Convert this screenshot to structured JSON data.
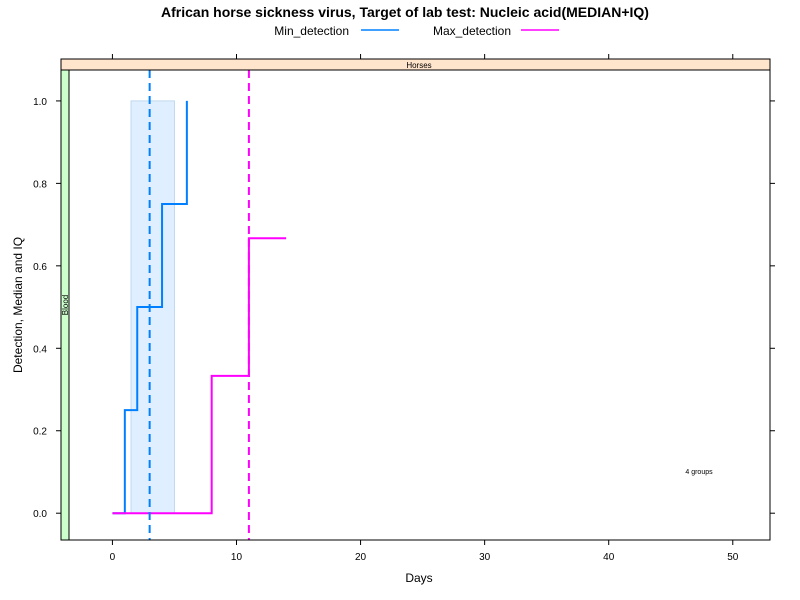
{
  "chart_data": {
    "type": "line",
    "title": "African horse sickness virus, Target of lab test: Nucleic acid(MEDIAN+IQ)",
    "xlabel": "Days",
    "ylabel": "Detection, Median and IQ",
    "xlim": [
      -3.5,
      53.0
    ],
    "ylim": [
      -0.065,
      1.075
    ],
    "x_ticks": [
      0,
      10,
      20,
      30,
      40,
      50
    ],
    "y_ticks": [
      0.0,
      0.2,
      0.4,
      0.6,
      0.8,
      1.0
    ],
    "x_tick_labels": [
      "0",
      "10",
      "20",
      "30",
      "40",
      "50"
    ],
    "y_tick_labels": [
      "0.0",
      "0.2",
      "0.4",
      "0.6",
      "0.8",
      "1.0"
    ],
    "strip_top": "Horses",
    "strip_left": "Blood",
    "annotation": "4 groups",
    "legend_position": "top",
    "series": [
      {
        "name": "Min_detection",
        "color": "#0080ff",
        "kind": "step",
        "points": [
          [
            0,
            0
          ],
          [
            1,
            0
          ],
          [
            1,
            0.25
          ],
          [
            2,
            0.25
          ],
          [
            2,
            0.5
          ],
          [
            4,
            0.5
          ],
          [
            4,
            0.75
          ],
          [
            6,
            0.75
          ],
          [
            6,
            1.0
          ]
        ],
        "median": 3,
        "iqr": {
          "x_range": [
            1.5,
            5.0
          ],
          "y_range": [
            0,
            1.0
          ],
          "fill": "#e0efff",
          "stroke": "#c0d8f0"
        }
      },
      {
        "name": "Max_detection",
        "color": "#ff00ff",
        "kind": "step",
        "points": [
          [
            0,
            0
          ],
          [
            8,
            0
          ],
          [
            8,
            0.333
          ],
          [
            11,
            0.333
          ],
          [
            11,
            0.667
          ],
          [
            14,
            0.667
          ]
        ],
        "median": 11
      }
    ],
    "strip_colors": {
      "top": "#ffe5cc",
      "left": "#ccffcc"
    }
  }
}
